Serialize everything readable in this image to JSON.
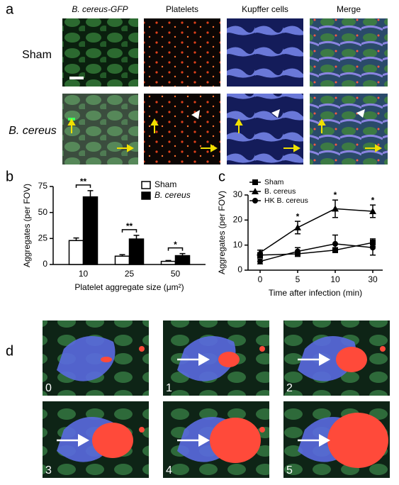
{
  "panel_labels": [
    "a",
    "b",
    "c",
    "d"
  ],
  "panel_a": {
    "columns": [
      "B. cereus-GFP",
      "Platelets",
      "Kupffer cells",
      "Merge"
    ],
    "rows": [
      "Sham",
      "B. cereus"
    ]
  },
  "chart_data": [
    {
      "type": "bar",
      "categories": [
        "10",
        "25",
        "50"
      ],
      "xlabel": "Platelet aggregate size (μm²)",
      "ylabel": "Aggregates (per FOV)",
      "ylim": [
        0,
        75
      ],
      "yticks": [
        0,
        25,
        50,
        75
      ],
      "legend": "top-right",
      "series": [
        {
          "name": "Sham",
          "color": "#ffffff",
          "values": [
            23,
            8,
            3
          ],
          "errors": [
            2.5,
            1.5,
            0.8
          ]
        },
        {
          "name": "B. cereus",
          "color": "#000000",
          "values": [
            65,
            24.5,
            8.5
          ],
          "errors": [
            6,
            3.5,
            2
          ]
        }
      ],
      "annotations": [
        "**",
        "**",
        "*"
      ]
    },
    {
      "type": "line",
      "categories": [
        "0",
        "5",
        "10",
        "30"
      ],
      "xlabel": "Time after infection (min)",
      "ylabel": "Aggregates (per FOV)",
      "ylim": [
        0,
        30
      ],
      "yticks": [
        0,
        10,
        20,
        30
      ],
      "legend": "top-left",
      "series": [
        {
          "name": "Sham",
          "color": "#000000",
          "marker": "square",
          "values": [
            6,
            6.5,
            8,
            11
          ],
          "errors": [
            1,
            1,
            1,
            1.5
          ]
        },
        {
          "name": "B. cereus",
          "color": "#000000",
          "marker": "triangle",
          "values": [
            7,
            17,
            24.5,
            23.5
          ],
          "errors": [
            1,
            2.5,
            3.5,
            2.5
          ]
        },
        {
          "name": "HK B. cereus",
          "color": "#000000",
          "marker": "circle",
          "values": [
            3.5,
            7.5,
            10.5,
            9
          ],
          "errors": [
            1,
            1.5,
            3.5,
            3
          ]
        }
      ],
      "annotations": [
        "*",
        "*",
        "*"
      ]
    }
  ],
  "panel_d": {
    "frames": [
      "0",
      "1",
      "2",
      "3",
      "4",
      "5"
    ]
  }
}
